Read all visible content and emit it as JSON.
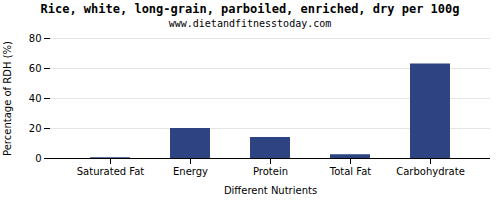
{
  "chart_data": {
    "type": "bar",
    "title": "Rice, white, long-grain, parboiled, enriched, dry per 100g",
    "subtitle": "www.dietandfitnesstoday.com",
    "xlabel": "Different Nutrients",
    "ylabel": "Percentage of RDH (%)",
    "categories": [
      "Saturated Fat",
      "Energy",
      "Protein",
      "Total Fat",
      "Carbohydrate"
    ],
    "values": [
      0.5,
      20,
      14,
      2.5,
      63
    ],
    "color": "#2e4482",
    "ylim": [
      0,
      80
    ],
    "yticks": [
      0,
      20,
      40,
      60,
      80
    ],
    "grid": true
  }
}
